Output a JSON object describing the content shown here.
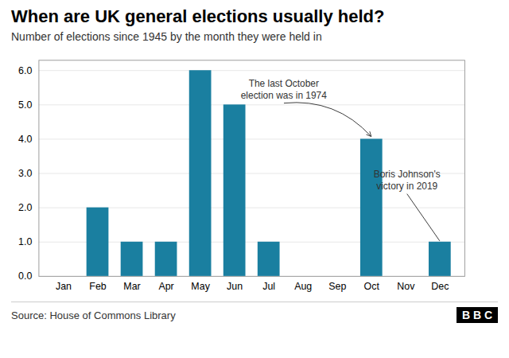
{
  "chart_data": {
    "type": "bar",
    "title": "When are UK general elections usually held?",
    "subtitle": "Number of elections since 1945 by the month they were held in",
    "source": "Source: House of Commons Library",
    "logo": "B B C",
    "categories": [
      "Jan",
      "Feb",
      "Mar",
      "Apr",
      "May",
      "Jun",
      "Jul",
      "Aug",
      "Sep",
      "Oct",
      "Nov",
      "Dec"
    ],
    "values": [
      0,
      2,
      1,
      1,
      6,
      5,
      1,
      0,
      0,
      4,
      0,
      1
    ],
    "color": "#1a7fa0",
    "ylim": [
      0,
      6.3
    ],
    "yticks": [
      0,
      1,
      2,
      3,
      4,
      5,
      6
    ],
    "grid": true,
    "annotations": [
      {
        "text": "The last October\nelection was in 1974",
        "x": "Oct",
        "y": 4.0,
        "color": "#333333"
      },
      {
        "text": "Boris Johnson's\nvictory in 2019",
        "x": "Dec",
        "y": 1.0,
        "color": "#333333"
      }
    ]
  }
}
